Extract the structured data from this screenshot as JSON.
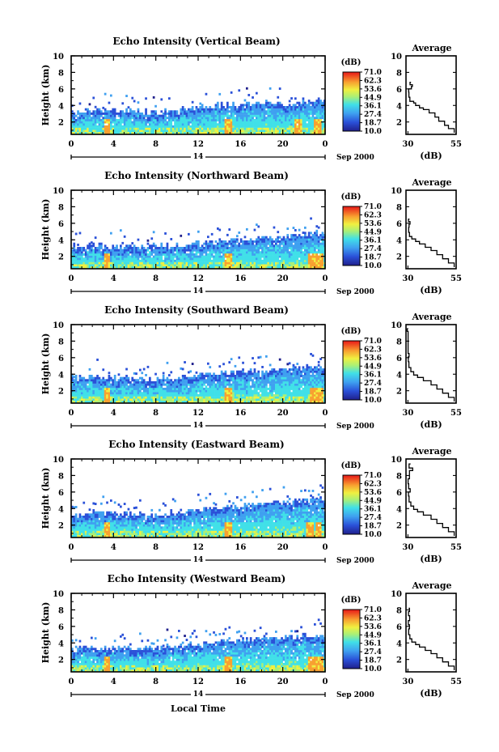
{
  "figure": {
    "x_axis_label": "Local Time",
    "month_label": "Sep 2000",
    "day_label": "14",
    "height_label": "Height (km)",
    "average_title": "Average",
    "average_xlabel": "(dB)",
    "colorbar_unit": "(dB)"
  },
  "chart_data": [
    {
      "type": "heatmap",
      "title": "Echo Intensity (Vertical Beam)",
      "xlabel": "",
      "ylabel": "Height (km)",
      "xlim": [
        0,
        24
      ],
      "ylim": [
        0.5,
        10
      ],
      "xticks": [
        "0",
        "4",
        "8",
        "12",
        "16",
        "20",
        "0"
      ],
      "yticks": [
        "2",
        "4",
        "6",
        "8",
        "10"
      ],
      "colorbar": {
        "label": "(dB)",
        "ticks": [
          "71.0",
          "62.3",
          "53.6",
          "44.9",
          "36.1",
          "27.4",
          "18.7",
          "10.0"
        ],
        "range": [
          10.0,
          71.0
        ]
      },
      "echo_top_km": [
        [
          0,
          3.2
        ],
        [
          2,
          3.3
        ],
        [
          4,
          3.4
        ],
        [
          6,
          3.3
        ],
        [
          8,
          3.0
        ],
        [
          10,
          3.4
        ],
        [
          12,
          3.6
        ],
        [
          14,
          3.9
        ],
        [
          16,
          4.0
        ],
        [
          18,
          4.2
        ],
        [
          20,
          4.1
        ],
        [
          22,
          4.4
        ],
        [
          24,
          4.5
        ]
      ],
      "convective_times_h": [
        3.3,
        14.8,
        21.4,
        23.2
      ],
      "average": {
        "title": "Average",
        "xlabel": "(dB)",
        "xlim": [
          29,
          55
        ],
        "xticks": [
          "30",
          "55"
        ],
        "ylim": [
          0.5,
          10
        ],
        "yticks": [
          "2",
          "4",
          "6",
          "8",
          "10"
        ],
        "profile": [
          [
            54,
            0.7
          ],
          [
            51,
            1.2
          ],
          [
            49,
            1.6
          ],
          [
            46,
            2.1
          ],
          [
            44,
            2.6
          ],
          [
            41,
            3.1
          ],
          [
            38,
            3.5
          ],
          [
            36,
            3.7
          ],
          [
            34,
            4.0
          ],
          [
            33,
            4.3
          ],
          [
            31,
            4.5
          ],
          [
            30.5,
            5.0
          ],
          [
            30.4,
            5.6
          ],
          [
            31.8,
            6.0
          ],
          [
            32.3,
            6.3
          ],
          [
            31.1,
            6.5
          ],
          [
            31.6,
            6.8
          ]
        ]
      }
    },
    {
      "type": "heatmap",
      "title": "Echo Intensity (Northward Beam)",
      "xlabel": "",
      "ylabel": "Height (km)",
      "xlim": [
        0,
        24
      ],
      "ylim": [
        0.5,
        10
      ],
      "xticks": [
        "0",
        "4",
        "8",
        "12",
        "16",
        "20",
        "0"
      ],
      "yticks": [
        "2",
        "4",
        "6",
        "8",
        "10"
      ],
      "colorbar": {
        "label": "(dB)",
        "ticks": [
          "71.0",
          "62.3",
          "53.6",
          "44.9",
          "36.1",
          "27.4",
          "18.7",
          "10.0"
        ],
        "range": [
          10.0,
          71.0
        ]
      },
      "echo_top_km": [
        [
          0,
          3.1
        ],
        [
          2,
          3.2
        ],
        [
          4,
          3.1
        ],
        [
          6,
          3.2
        ],
        [
          8,
          3.1
        ],
        [
          10,
          3.3
        ],
        [
          12,
          3.6
        ],
        [
          14,
          3.8
        ],
        [
          16,
          3.9
        ],
        [
          18,
          4.1
        ],
        [
          20,
          4.2
        ],
        [
          22,
          4.6
        ],
        [
          24,
          4.8
        ]
      ],
      "convective_times_h": [
        3.3,
        14.8,
        22.6,
        23.4
      ],
      "average": {
        "title": "Average",
        "xlabel": "(dB)",
        "xlim": [
          29,
          55
        ],
        "xticks": [
          "30",
          "55"
        ],
        "ylim": [
          0.5,
          10
        ],
        "yticks": [
          "2",
          "4",
          "6",
          "8",
          "10"
        ],
        "profile": [
          [
            54,
            0.7
          ],
          [
            51,
            1.2
          ],
          [
            48,
            1.7
          ],
          [
            45,
            2.2
          ],
          [
            42,
            2.7
          ],
          [
            39,
            3.1
          ],
          [
            36,
            3.5
          ],
          [
            34,
            3.8
          ],
          [
            32,
            4.1
          ],
          [
            30.8,
            4.4
          ],
          [
            30.4,
            4.9
          ],
          [
            30.6,
            5.5
          ],
          [
            31.1,
            5.9
          ],
          [
            30.3,
            6.2
          ],
          [
            30.8,
            6.5
          ]
        ]
      }
    },
    {
      "type": "heatmap",
      "title": "Echo Intensity (Southward Beam)",
      "xlabel": "",
      "ylabel": "Height (km)",
      "xlim": [
        0,
        24
      ],
      "ylim": [
        0.5,
        10
      ],
      "xticks": [
        "0",
        "4",
        "8",
        "12",
        "16",
        "20",
        "0"
      ],
      "yticks": [
        "2",
        "4",
        "6",
        "8",
        "10"
      ],
      "colorbar": {
        "label": "(dB)",
        "ticks": [
          "71.0",
          "62.3",
          "53.6",
          "44.9",
          "36.1",
          "27.4",
          "18.7",
          "10.0"
        ],
        "range": [
          10.0,
          71.0
        ]
      },
      "echo_top_km": [
        [
          0,
          3.5
        ],
        [
          2,
          3.6
        ],
        [
          4,
          3.4
        ],
        [
          6,
          3.3
        ],
        [
          8,
          3.3
        ],
        [
          10,
          3.5
        ],
        [
          12,
          3.8
        ],
        [
          14,
          4.0
        ],
        [
          16,
          4.2
        ],
        [
          18,
          4.4
        ],
        [
          20,
          4.6
        ],
        [
          22,
          4.8
        ],
        [
          24,
          4.6
        ]
      ],
      "convective_times_h": [
        3.3,
        14.8,
        22.8,
        23.4
      ],
      "average": {
        "title": "Average",
        "xlabel": "(dB)",
        "xlim": [
          29,
          55
        ],
        "xticks": [
          "30",
          "55"
        ],
        "ylim": [
          0.5,
          10
        ],
        "yticks": [
          "2",
          "4",
          "6",
          "8",
          "10"
        ],
        "profile": [
          [
            54,
            0.7
          ],
          [
            51,
            1.2
          ],
          [
            48,
            1.7
          ],
          [
            45,
            2.2
          ],
          [
            42,
            2.7
          ],
          [
            38,
            3.2
          ],
          [
            35,
            3.6
          ],
          [
            33,
            3.9
          ],
          [
            31.5,
            4.3
          ],
          [
            30.5,
            4.8
          ],
          [
            30.2,
            5.5
          ],
          [
            30.6,
            6.1
          ],
          [
            30.1,
            6.5
          ],
          [
            29.6,
            9.2
          ],
          [
            30.2,
            9.5
          ]
        ]
      }
    },
    {
      "type": "heatmap",
      "title": "Echo Intensity (Eastward Beam)",
      "xlabel": "",
      "ylabel": "Height (km)",
      "xlim": [
        0,
        24
      ],
      "ylim": [
        0.5,
        10
      ],
      "xticks": [
        "0",
        "4",
        "8",
        "12",
        "16",
        "20",
        "0"
      ],
      "yticks": [
        "2",
        "4",
        "6",
        "8",
        "10"
      ],
      "colorbar": {
        "label": "(dB)",
        "ticks": [
          "71.0",
          "62.3",
          "53.6",
          "44.9",
          "36.1",
          "27.4",
          "18.7",
          "10.0"
        ],
        "range": [
          10.0,
          71.0
        ]
      },
      "echo_top_km": [
        [
          0,
          3.3
        ],
        [
          2,
          3.4
        ],
        [
          4,
          3.3
        ],
        [
          6,
          3.2
        ],
        [
          8,
          3.2
        ],
        [
          10,
          3.5
        ],
        [
          12,
          3.8
        ],
        [
          14,
          4.0
        ],
        [
          16,
          4.3
        ],
        [
          18,
          4.5
        ],
        [
          20,
          4.6
        ],
        [
          22,
          4.9
        ],
        [
          24,
          5.0
        ]
      ],
      "convective_times_h": [
        3.3,
        14.8,
        22.4,
        23.3
      ],
      "average": {
        "title": "Average",
        "xlabel": "(dB)",
        "xlim": [
          29,
          55
        ],
        "xticks": [
          "30",
          "55"
        ],
        "ylim": [
          0.5,
          10
        ],
        "yticks": [
          "2",
          "4",
          "6",
          "8",
          "10"
        ],
        "profile": [
          [
            54,
            0.7
          ],
          [
            51,
            1.2
          ],
          [
            48,
            1.7
          ],
          [
            45,
            2.2
          ],
          [
            42,
            2.7
          ],
          [
            38,
            3.2
          ],
          [
            35,
            3.6
          ],
          [
            33,
            3.9
          ],
          [
            31.5,
            4.3
          ],
          [
            30.6,
            4.8
          ],
          [
            30.3,
            5.5
          ],
          [
            31.2,
            6.0
          ],
          [
            30.4,
            6.4
          ],
          [
            30.1,
            7.0
          ],
          [
            30.8,
            7.6
          ],
          [
            32.5,
            8.6
          ],
          [
            30.6,
            8.9
          ],
          [
            31.4,
            9.4
          ]
        ]
      }
    },
    {
      "type": "heatmap",
      "title": "Echo Intensity (Westward Beam)",
      "xlabel": "",
      "ylabel": "Height (km)",
      "xlim": [
        0,
        24
      ],
      "ylim": [
        0.5,
        10
      ],
      "xticks": [
        "0",
        "4",
        "8",
        "12",
        "16",
        "20",
        "0"
      ],
      "yticks": [
        "2",
        "4",
        "6",
        "8",
        "10"
      ],
      "colorbar": {
        "label": "(dB)",
        "ticks": [
          "71.0",
          "62.3",
          "53.6",
          "44.9",
          "36.1",
          "27.4",
          "18.7",
          "10.0"
        ],
        "range": [
          10.0,
          71.0
        ]
      },
      "echo_top_km": [
        [
          0,
          3.2
        ],
        [
          2,
          3.3
        ],
        [
          4,
          3.3
        ],
        [
          6,
          3.2
        ],
        [
          8,
          3.3
        ],
        [
          10,
          3.5
        ],
        [
          12,
          3.8
        ],
        [
          14,
          4.0
        ],
        [
          16,
          4.3
        ],
        [
          18,
          4.4
        ],
        [
          20,
          4.6
        ],
        [
          22,
          4.8
        ],
        [
          24,
          4.7
        ]
      ],
      "convective_times_h": [
        3.3,
        14.8,
        22.6,
        23.4
      ],
      "average": {
        "title": "Average",
        "xlabel": "(dB)",
        "xlim": [
          29,
          55
        ],
        "xticks": [
          "30",
          "55"
        ],
        "ylim": [
          0.5,
          10
        ],
        "yticks": [
          "2",
          "4",
          "6",
          "8",
          "10"
        ],
        "profile": [
          [
            54,
            0.7
          ],
          [
            51,
            1.2
          ],
          [
            48,
            1.7
          ],
          [
            45,
            2.2
          ],
          [
            42,
            2.7
          ],
          [
            39,
            3.1
          ],
          [
            36,
            3.5
          ],
          [
            34,
            3.8
          ],
          [
            32,
            4.1
          ],
          [
            31,
            4.5
          ],
          [
            30.4,
            5.0
          ],
          [
            30.8,
            5.7
          ],
          [
            30.2,
            6.2
          ],
          [
            30.9,
            6.7
          ],
          [
            30.3,
            7.3
          ],
          [
            30.8,
            7.8
          ],
          [
            30.4,
            8.2
          ]
        ]
      }
    }
  ]
}
